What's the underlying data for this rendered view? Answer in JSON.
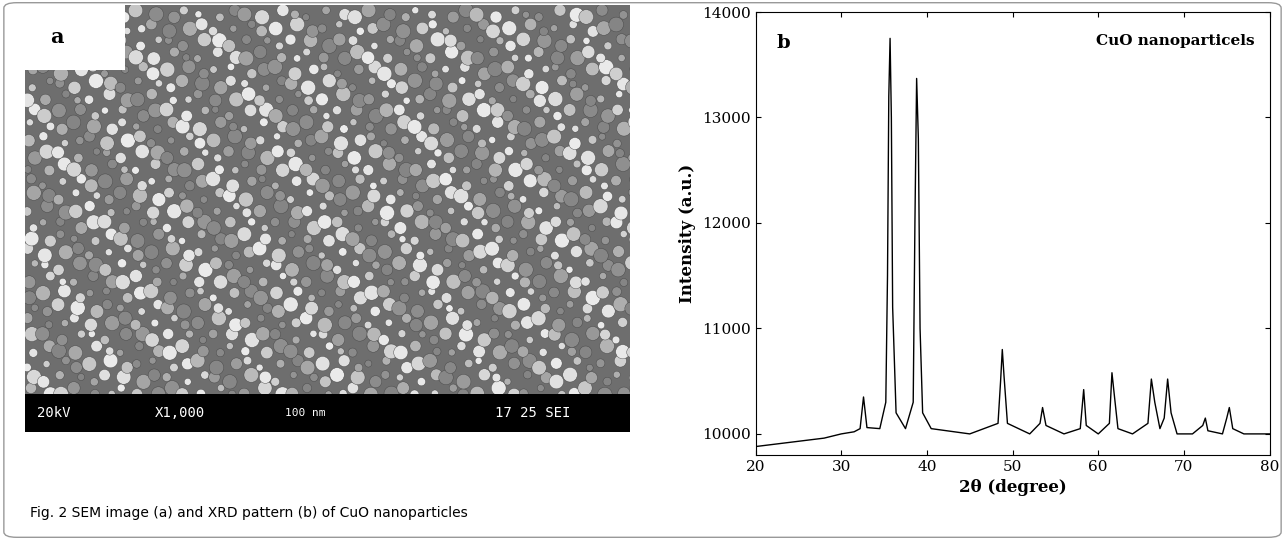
{
  "caption": "Fig. 2 SEM image (a) and XRD pattern (b) of CuO nanoparticles",
  "image_panel": {
    "label": "a",
    "info_bar": [
      "20kV",
      "X1,000",
      "100 nm",
      "17 25 SEI"
    ]
  },
  "chart_data": {
    "type": "line",
    "panel_label": "b",
    "annotation": "CuO nanoparticels",
    "x_label": "2θ (degree)",
    "y_label": "Intensity (a.u.)",
    "color": "#000000",
    "x": [
      20,
      22,
      24,
      26,
      28,
      30,
      31.5,
      32.2,
      32.6,
      33.0,
      34.5,
      35.2,
      35.4,
      35.55,
      35.7,
      35.85,
      36.0,
      36.4,
      37.5,
      38.4,
      38.6,
      38.8,
      39.0,
      39.2,
      39.5,
      40.5,
      45,
      48.3,
      48.6,
      48.8,
      49.0,
      49.4,
      52,
      53.2,
      53.5,
      53.9,
      56,
      57.9,
      58.3,
      58.6,
      60,
      61.3,
      61.6,
      61.9,
      62.3,
      64,
      65.8,
      66.2,
      66.6,
      67.2,
      67.7,
      68.1,
      68.5,
      69.2,
      71,
      72.2,
      72.5,
      72.8,
      74.5,
      75.0,
      75.3,
      75.7,
      77,
      80
    ],
    "values": [
      9880,
      9900,
      9920,
      9940,
      9960,
      10000,
      10020,
      10050,
      10350,
      10060,
      10050,
      10300,
      11500,
      13200,
      13750,
      13000,
      11200,
      10200,
      10050,
      10300,
      12000,
      13370,
      12800,
      11000,
      10200,
      10050,
      10000,
      10100,
      10500,
      10800,
      10550,
      10100,
      10000,
      10100,
      10250,
      10080,
      10000,
      10050,
      10420,
      10080,
      10000,
      10100,
      10580,
      10350,
      10050,
      10000,
      10100,
      10520,
      10300,
      10050,
      10150,
      10520,
      10200,
      10000,
      10000,
      10080,
      10150,
      10030,
      10000,
      10150,
      10250,
      10050,
      10000,
      10000
    ],
    "xlim": [
      20,
      80
    ],
    "xticks": [
      20,
      30,
      40,
      50,
      60,
      70,
      80
    ],
    "ylim": [
      9800,
      14000
    ],
    "yticks": [
      10000,
      11000,
      12000,
      13000,
      14000
    ]
  }
}
